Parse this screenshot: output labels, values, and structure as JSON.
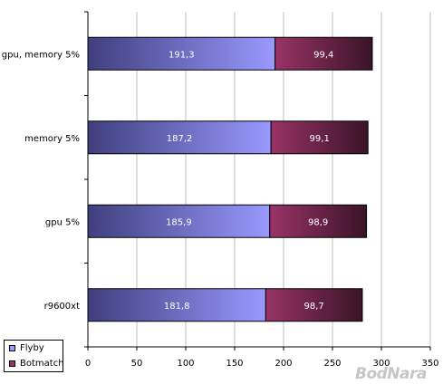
{
  "chart_data": {
    "type": "bar",
    "orientation": "horizontal",
    "stacked": true,
    "categories": [
      "gpu, memory 5%",
      "memory 5%",
      "gpu 5%",
      "r9600xt"
    ],
    "series": [
      {
        "name": "Flyby",
        "values": [
          191.3,
          187.2,
          185.9,
          181.8
        ],
        "labels": [
          "191,3",
          "187,2",
          "185,9",
          "181,8"
        ],
        "color_start": "#3f3f7f",
        "color_end": "#9999ff"
      },
      {
        "name": "Botmatch",
        "values": [
          99.4,
          99.1,
          98.9,
          98.7
        ],
        "labels": [
          "99,4",
          "99,1",
          "98,9",
          "98,7"
        ],
        "color_start": "#993366",
        "color_end": "#3a1428"
      }
    ],
    "xlim": [
      0,
      350
    ],
    "xticks": [
      0,
      50,
      100,
      150,
      200,
      250,
      300,
      350
    ],
    "grid": true,
    "legend_position": "bottom-left",
    "title": "",
    "xlabel": "",
    "ylabel": ""
  },
  "legend": {
    "items": [
      {
        "label": "Flyby",
        "color": "#9999ff"
      },
      {
        "label": "Botmatch",
        "color": "#993366"
      }
    ]
  },
  "watermark": {
    "text": "BodNara"
  }
}
